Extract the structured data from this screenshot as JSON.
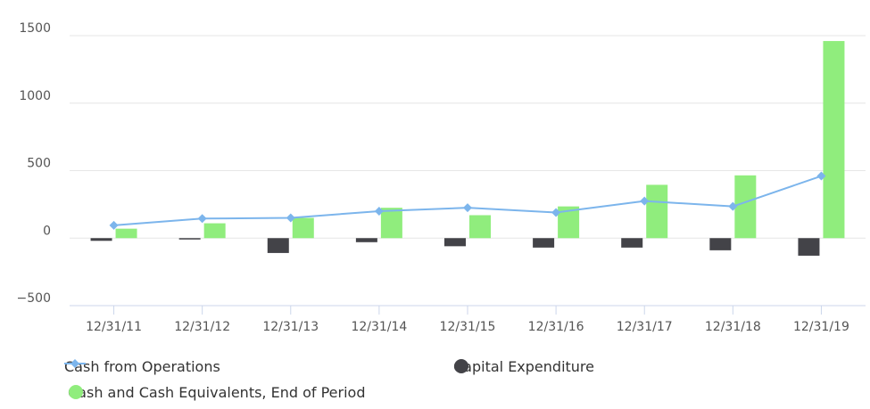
{
  "chart_data": {
    "type": "bar",
    "title": "",
    "xlabel": "",
    "ylabel": "",
    "categories": [
      "12/31/11",
      "12/31/12",
      "12/31/13",
      "12/31/14",
      "12/31/15",
      "12/31/16",
      "12/31/17",
      "12/31/18",
      "12/31/19"
    ],
    "ylim": [
      -500,
      1500
    ],
    "yticks": [
      -500,
      0,
      500,
      1000,
      1500
    ],
    "ytick_labels": [
      "−500",
      "0",
      "500",
      "1000",
      "1500"
    ],
    "grid": true,
    "legend_position": "bottom-left",
    "series": [
      {
        "name": "Cash from Operations",
        "type": "line",
        "color": "#7cb5ec",
        "marker": "diamond",
        "values": [
          95,
          145,
          150,
          200,
          225,
          190,
          275,
          235,
          460
        ]
      },
      {
        "name": "Capital Expenditure",
        "type": "bar",
        "color": "#434348",
        "values": [
          -20,
          -10,
          -110,
          -30,
          -60,
          -70,
          -70,
          -90,
          -130
        ]
      },
      {
        "name": "Cash and Cash Equivalents, End of Period",
        "type": "bar",
        "color": "#90ed7d",
        "values": [
          70,
          110,
          150,
          225,
          170,
          235,
          395,
          465,
          1460
        ]
      }
    ]
  },
  "legend": {
    "items": [
      {
        "label": "Cash from Operations",
        "marker": "line-diamond",
        "color": "#7cb5ec"
      },
      {
        "label": "Capital Expenditure",
        "marker": "circle",
        "color": "#434348"
      },
      {
        "label": "Cash and Cash Equivalents, End of Period",
        "marker": "circle",
        "color": "#90ed7d"
      }
    ]
  }
}
